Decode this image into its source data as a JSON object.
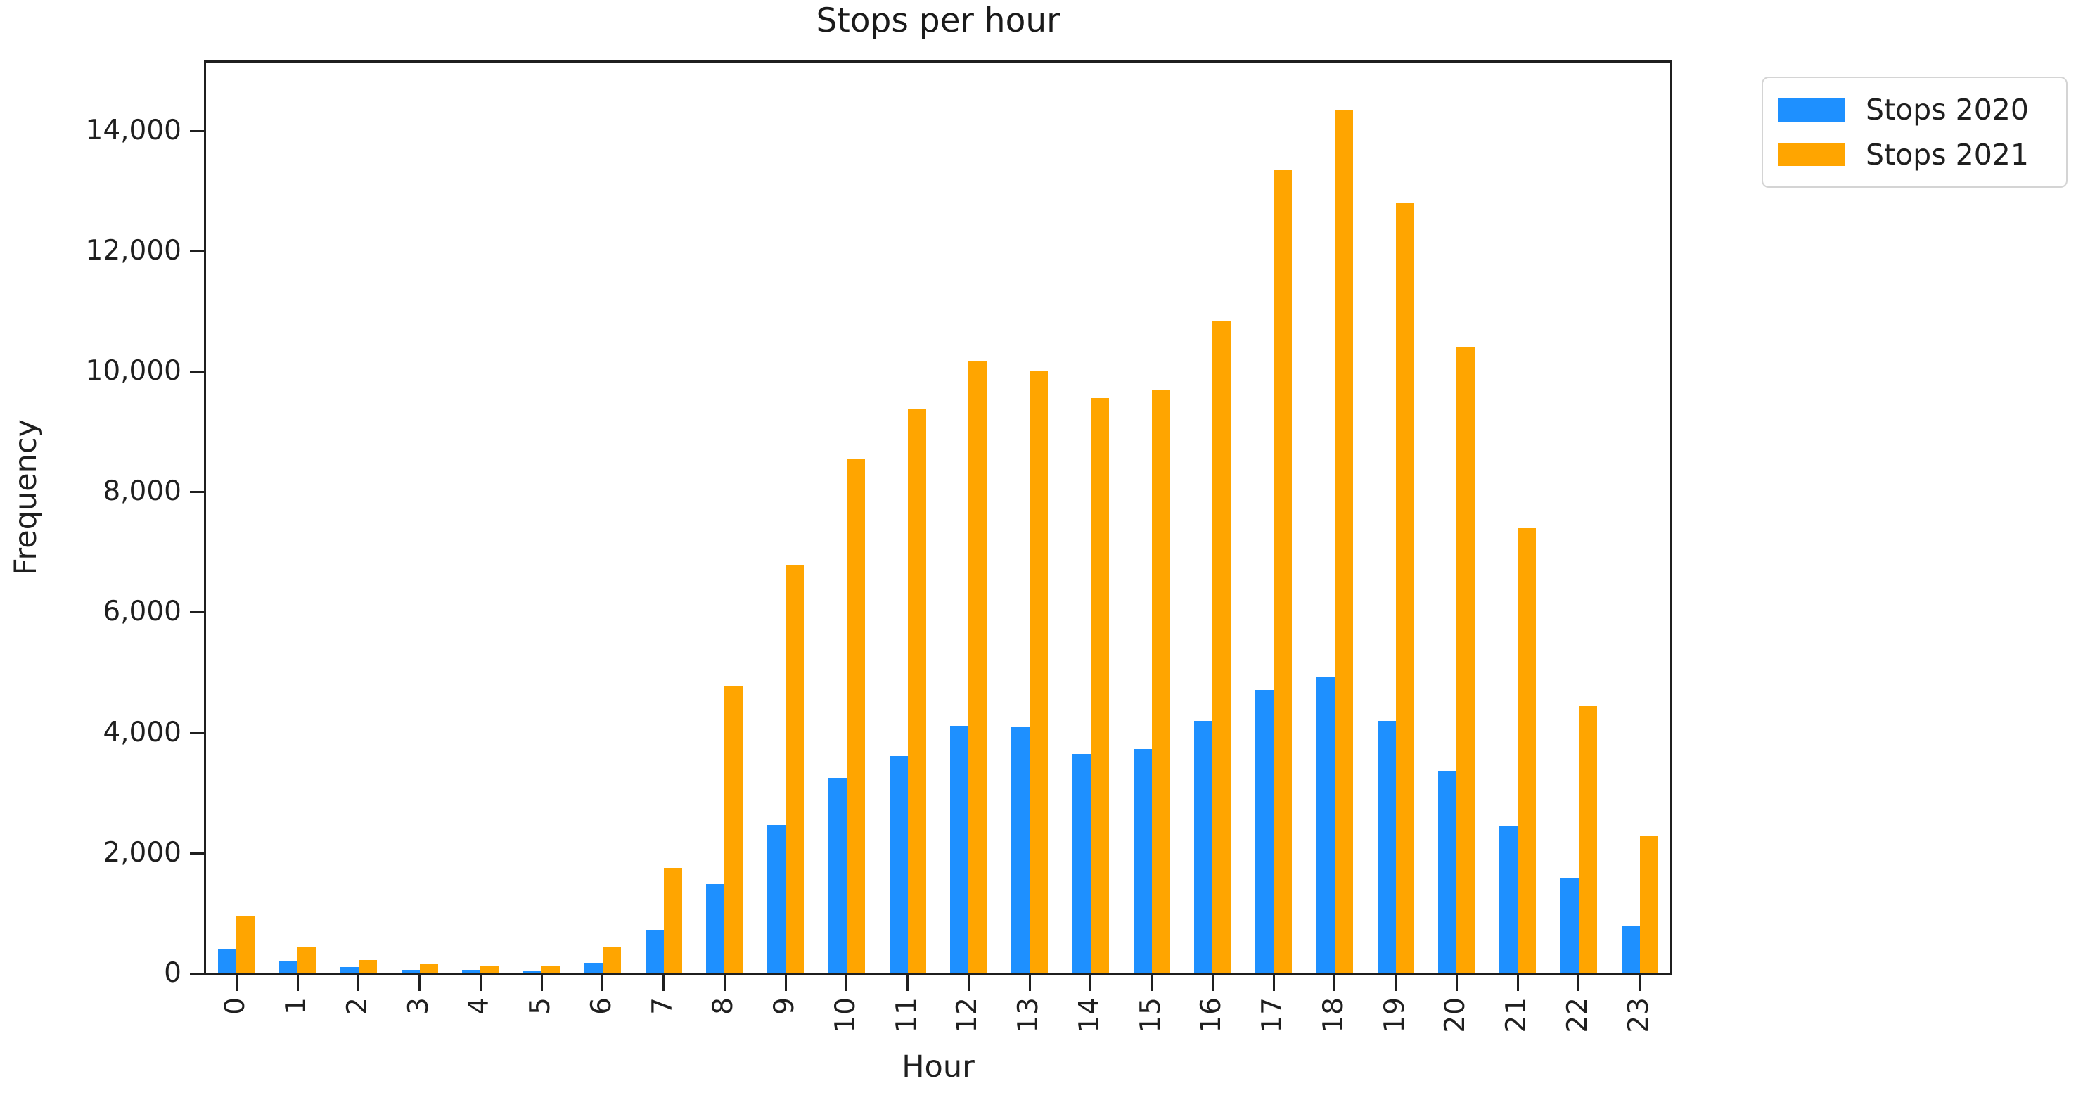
{
  "title": "Stops per hour",
  "axes": {
    "xlabel": "Hour",
    "ylabel": "Frequency"
  },
  "legend": {
    "position": "outside-upper-right",
    "items": [
      {
        "label": "Stops 2020",
        "color": "#1e90ff"
      },
      {
        "label": "Stops 2021",
        "color": "#ffa500"
      }
    ]
  },
  "chart_data": {
    "type": "bar",
    "title": "Stops per hour",
    "xlabel": "Hour",
    "ylabel": "Frequency",
    "categories": [
      "0",
      "1",
      "2",
      "3",
      "4",
      "5",
      "6",
      "7",
      "8",
      "9",
      "10",
      "11",
      "12",
      "13",
      "14",
      "15",
      "16",
      "17",
      "18",
      "19",
      "20",
      "21",
      "22",
      "23"
    ],
    "series": [
      {
        "name": "Stops 2020",
        "color": "#1e90ff",
        "values": [
          400,
          200,
          100,
          60,
          60,
          50,
          170,
          710,
          1480,
          2470,
          3250,
          3610,
          4110,
          4100,
          3650,
          3730,
          4200,
          4710,
          4920,
          4200,
          3370,
          2440,
          1580,
          790
        ]
      },
      {
        "name": "Stops 2021",
        "color": "#ffa500",
        "values": [
          950,
          440,
          220,
          160,
          130,
          130,
          440,
          1750,
          4770,
          6780,
          8550,
          9370,
          10160,
          10000,
          9560,
          9690,
          10830,
          13340,
          14330,
          12790,
          10410,
          7400,
          4440,
          2280
        ]
      }
    ],
    "ylim": [
      0,
      15130
    ],
    "yticks": [
      {
        "v": 0,
        "label": "0"
      },
      {
        "v": 2000,
        "label": "2,000"
      },
      {
        "v": 4000,
        "label": "4,000"
      },
      {
        "v": 6000,
        "label": "6,000"
      },
      {
        "v": 8000,
        "label": "8,000"
      },
      {
        "v": 10000,
        "label": "10,000"
      },
      {
        "v": 12000,
        "label": "12,000"
      },
      {
        "v": 14000,
        "label": "14,000"
      }
    ],
    "grid": false,
    "x_tick_rotation_deg": 90,
    "legend_position": "upper right"
  }
}
